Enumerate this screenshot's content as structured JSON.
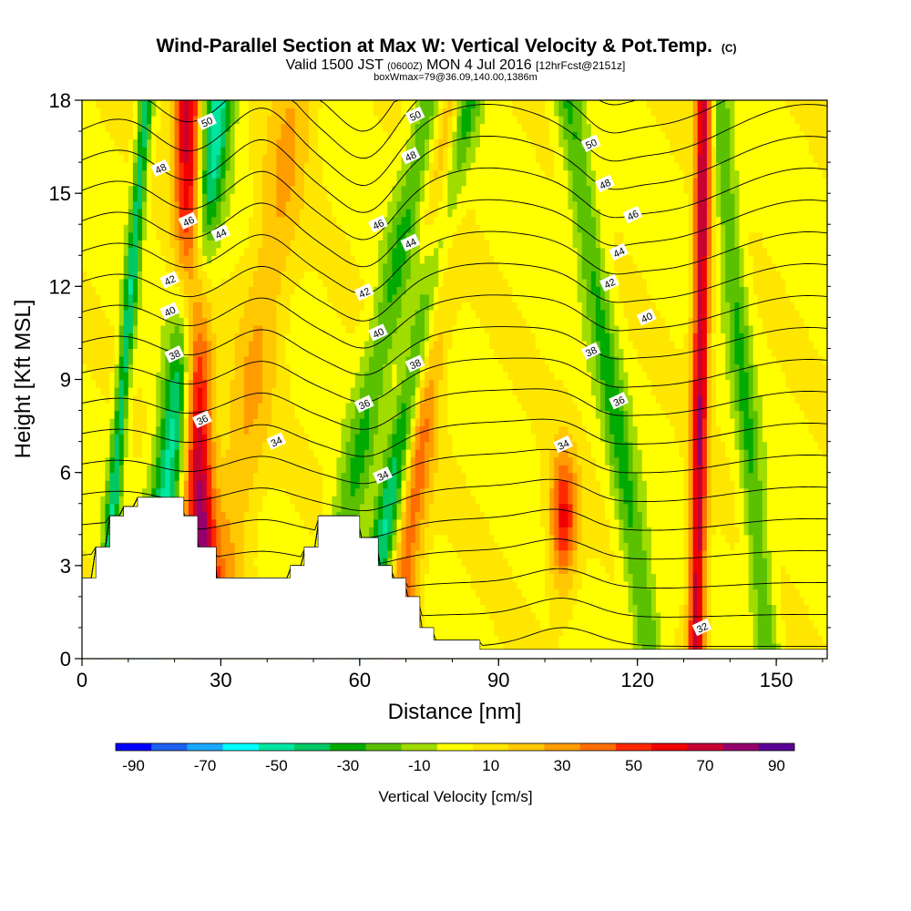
{
  "header": {
    "title": "Wind-Parallel Section at Max W: Vertical Velocity & Pot.Temp.",
    "title_mark": "(C)",
    "line2_a": "Valid 1500 JST",
    "line2_b": "(0600Z)",
    "line2_c": "MON 4 Jul 2016",
    "line2_d": "[12hrFcst@2151z]",
    "line3": "boxWmax=79@36.09,140.00,1386m"
  },
  "chart_data": {
    "type": "heatmap",
    "title": "Wind-Parallel Section at Max W: Vertical Velocity & Pot.Temp.",
    "xlabel": "Distance [nm]",
    "ylabel": "Height [Kft MSL]",
    "xlim": [
      0,
      161
    ],
    "ylim": [
      0,
      18
    ],
    "x_ticks": [
      "0",
      "30",
      "60",
      "90",
      "120",
      "150"
    ],
    "y_ticks": [
      "0",
      "3",
      "6",
      "9",
      "12",
      "15",
      "18"
    ],
    "colorbar": {
      "label": "Vertical Velocity [cm/s]",
      "min": -100,
      "max": 100,
      "step": 10,
      "tick_labels": [
        "-90",
        "-70",
        "-50",
        "-30",
        "-10",
        "10",
        "30",
        "50",
        "70",
        "90"
      ],
      "colors": [
        "#0000ff",
        "#1e60f0",
        "#18a8ff",
        "#00ffff",
        "#00e6a0",
        "#00c864",
        "#00aa00",
        "#5ac000",
        "#a0dc00",
        "#ffff00",
        "#ffe600",
        "#ffc800",
        "#ff9c00",
        "#ff6e00",
        "#ff2800",
        "#f00000",
        "#c80032",
        "#96006e",
        "#5a0096"
      ]
    },
    "velocity_bands": [
      {
        "x": 4,
        "h": 0,
        "slope": 0.55,
        "w": 1.5,
        "v": -45
      },
      {
        "x": 16,
        "h": 3,
        "slope": 0.9,
        "w": 3.5,
        "v": -55
      },
      {
        "x": 26,
        "h": 2,
        "slope": -0.2,
        "w": 3.2,
        "v": 72
      },
      {
        "x": 34,
        "h": 6,
        "slope": 1.0,
        "w": 5.0,
        "v": 22
      },
      {
        "x": 51,
        "h": 0,
        "slope": 1.35,
        "w": 3.5,
        "v": -28
      },
      {
        "x": 63,
        "h": 2,
        "slope": 1.25,
        "w": 3.0,
        "v": -50
      },
      {
        "x": 72,
        "h": 6,
        "slope": 0.7,
        "w": 3.5,
        "v": 40
      },
      {
        "x": 104,
        "h": 4.5,
        "slope": 0.0,
        "w": 3.0,
        "v": 55
      },
      {
        "x": 113,
        "h": 10,
        "slope": -1.0,
        "w": 3.0,
        "v": -30
      },
      {
        "x": 133,
        "h": 3.5,
        "slope": 0.1,
        "w": 1.8,
        "v": 70
      },
      {
        "x": 141,
        "h": 12,
        "slope": -0.6,
        "w": 2.5,
        "v": -28
      }
    ],
    "terrain_kft": [
      [
        0,
        2.6
      ],
      [
        3,
        3.6
      ],
      [
        6,
        4.6
      ],
      [
        9,
        4.9
      ],
      [
        12,
        5.2
      ],
      [
        22,
        4.6
      ],
      [
        25,
        3.6
      ],
      [
        29,
        2.6
      ],
      [
        45,
        3.0
      ],
      [
        48,
        3.6
      ],
      [
        51,
        4.6
      ],
      [
        60,
        3.9
      ],
      [
        64,
        3.0
      ],
      [
        67,
        2.6
      ],
      [
        70,
        2.0
      ],
      [
        73,
        1.0
      ],
      [
        76,
        0.6
      ],
      [
        86,
        0.3
      ],
      [
        90,
        0.3
      ],
      [
        161,
        0.3
      ]
    ],
    "theta_contour_levels": [
      32,
      33,
      34,
      35,
      36,
      37,
      38,
      39,
      40,
      41,
      42,
      43,
      44,
      45,
      46,
      47,
      48,
      49,
      50,
      51
    ],
    "theta_labels": [
      {
        "text": "50",
        "x": 27,
        "y": 17.3
      },
      {
        "text": "48",
        "x": 17,
        "y": 15.8
      },
      {
        "text": "46",
        "x": 23,
        "y": 14.1
      },
      {
        "text": "44",
        "x": 30,
        "y": 13.7
      },
      {
        "text": "42",
        "x": 19,
        "y": 12.2
      },
      {
        "text": "40",
        "x": 19,
        "y": 11.2
      },
      {
        "text": "38",
        "x": 20,
        "y": 9.8
      },
      {
        "text": "36",
        "x": 26,
        "y": 7.7
      },
      {
        "text": "34",
        "x": 42,
        "y": 7.0
      },
      {
        "text": "50",
        "x": 72,
        "y": 17.5
      },
      {
        "text": "48",
        "x": 71,
        "y": 16.2
      },
      {
        "text": "46",
        "x": 64,
        "y": 14.0
      },
      {
        "text": "44",
        "x": 71,
        "y": 13.4
      },
      {
        "text": "42",
        "x": 61,
        "y": 11.8
      },
      {
        "text": "40",
        "x": 64,
        "y": 10.5
      },
      {
        "text": "38",
        "x": 72,
        "y": 9.5
      },
      {
        "text": "36",
        "x": 61,
        "y": 8.2
      },
      {
        "text": "34",
        "x": 65,
        "y": 5.9
      },
      {
        "text": "34",
        "x": 104,
        "y": 6.9
      },
      {
        "text": "50",
        "x": 110,
        "y": 16.6
      },
      {
        "text": "48",
        "x": 113,
        "y": 15.3
      },
      {
        "text": "46",
        "x": 119,
        "y": 14.3
      },
      {
        "text": "44",
        "x": 116,
        "y": 13.1
      },
      {
        "text": "42",
        "x": 114,
        "y": 12.1
      },
      {
        "text": "40",
        "x": 122,
        "y": 11.0
      },
      {
        "text": "38",
        "x": 110,
        "y": 9.9
      },
      {
        "text": "36",
        "x": 116,
        "y": 8.3
      },
      {
        "text": "32",
        "x": 134,
        "y": 1.0
      }
    ]
  }
}
